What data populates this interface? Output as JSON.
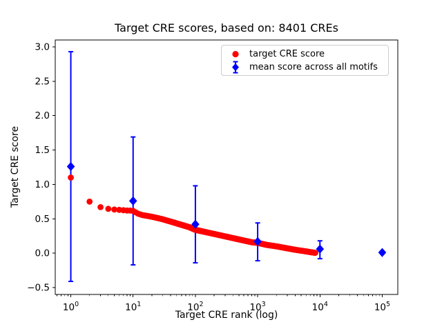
{
  "chart_data": {
    "type": "scatter",
    "title": "Target CRE scores, based on: 8401 CREs",
    "xlabel": "Target CRE rank (log)",
    "ylabel": "Target CRE score",
    "x_scale": "log",
    "xlim_log10": [
      -0.25,
      5.25
    ],
    "ylim": [
      -0.6,
      3.1
    ],
    "grid": false,
    "n_points": 8401,
    "axis_color": "#000000",
    "background": "#ffffff",
    "x_ticks": [
      {
        "value": 1,
        "base": "10",
        "exp": "0"
      },
      {
        "value": 10,
        "base": "10",
        "exp": "1"
      },
      {
        "value": 100,
        "base": "10",
        "exp": "2"
      },
      {
        "value": 1000,
        "base": "10",
        "exp": "3"
      },
      {
        "value": 10000,
        "base": "10",
        "exp": "4"
      },
      {
        "value": 100000,
        "base": "10",
        "exp": "5"
      }
    ],
    "y_ticks": [
      {
        "value": 3.0,
        "label": "3.0"
      },
      {
        "value": 2.5,
        "label": "2.5"
      },
      {
        "value": 2.0,
        "label": "2.0"
      },
      {
        "value": 1.5,
        "label": "1.5"
      },
      {
        "value": 1.0,
        "label": "1.0"
      },
      {
        "value": 0.5,
        "label": "0.5"
      },
      {
        "value": 0.0,
        "label": "0.0"
      },
      {
        "value": -0.5,
        "label": "−0.5"
      }
    ],
    "legend_position": "upper right",
    "series": [
      {
        "name": "target CRE score",
        "marker": "circle",
        "color": "#ff0000",
        "note": "8401 ranked points; anchor samples (rank, score) read from plot, intermediate ranks interpolated on log axis",
        "points": [
          [
            1,
            1.1
          ],
          [
            2,
            0.75
          ],
          [
            3,
            0.67
          ],
          [
            4,
            0.645
          ],
          [
            5,
            0.635
          ],
          [
            6,
            0.63
          ],
          [
            7,
            0.625
          ],
          [
            8,
            0.62
          ],
          [
            9,
            0.62
          ],
          [
            10,
            0.615
          ],
          [
            12,
            0.575
          ],
          [
            14,
            0.555
          ],
          [
            20,
            0.53
          ],
          [
            28,
            0.5
          ],
          [
            40,
            0.46
          ],
          [
            56,
            0.42
          ],
          [
            79,
            0.38
          ],
          [
            100,
            0.34
          ],
          [
            141,
            0.31
          ],
          [
            200,
            0.28
          ],
          [
            282,
            0.25
          ],
          [
            398,
            0.22
          ],
          [
            562,
            0.19
          ],
          [
            794,
            0.16
          ],
          [
            1000,
            0.15
          ],
          [
            1413,
            0.12
          ],
          [
            2000,
            0.1
          ],
          [
            2818,
            0.075
          ],
          [
            3981,
            0.05
          ],
          [
            5623,
            0.03
          ],
          [
            7079,
            0.015
          ],
          [
            8401,
            0.005
          ]
        ]
      },
      {
        "name": "mean score across all motifs",
        "marker": "diamond",
        "color": "#0000ff",
        "points": [
          {
            "x": 1,
            "y": 1.26,
            "lo": -0.41,
            "hi": 2.93
          },
          {
            "x": 10,
            "y": 0.76,
            "lo": -0.17,
            "hi": 1.69
          },
          {
            "x": 100,
            "y": 0.42,
            "lo": -0.14,
            "hi": 0.98
          },
          {
            "x": 1000,
            "y": 0.17,
            "lo": -0.11,
            "hi": 0.44
          },
          {
            "x": 10000,
            "y": 0.06,
            "lo": -0.08,
            "hi": 0.18
          },
          {
            "x": 100000,
            "y": 0.01,
            "lo": -0.01,
            "hi": 0.03
          }
        ]
      }
    ]
  }
}
